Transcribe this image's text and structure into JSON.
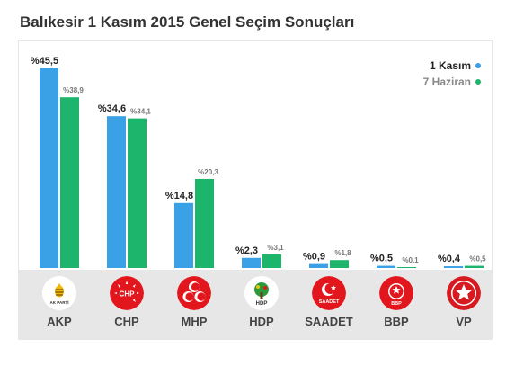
{
  "page": {
    "title": "Balıkesir 1 Kasım 2015 Genel Seçim Sonuçları"
  },
  "legend": {
    "current": "1 Kasım",
    "previous": "7 Haziran"
  },
  "colors": {
    "current": "#3aa1e6",
    "previous": "#1db56b"
  },
  "chart_data": {
    "type": "bar",
    "categories": [
      "AKP",
      "CHP",
      "MHP",
      "HDP",
      "SAADET",
      "BBP",
      "VP"
    ],
    "series": [
      {
        "name": "1 Kasım",
        "values": [
          45.5,
          34.6,
          14.8,
          2.3,
          0.9,
          0.5,
          0.4
        ],
        "labels": [
          "%45,5",
          "%34,6",
          "%14,8",
          "%2,3",
          "%0,9",
          "%0,5",
          "%0,4"
        ]
      },
      {
        "name": "7 Haziran",
        "values": [
          38.9,
          34.1,
          20.3,
          3.1,
          1.8,
          0.1,
          0.5
        ],
        "labels": [
          "%38,9",
          "%34,1",
          "%20,3",
          "%3,1",
          "%1,8",
          "%0,1",
          "%0,5"
        ]
      }
    ],
    "ylim": [
      0,
      50
    ],
    "grid": false,
    "legend_position": "top-right"
  },
  "parties": [
    {
      "name": "AKP",
      "logo_icon": "akp-logo-icon",
      "logo_text": "AK PARTİ"
    },
    {
      "name": "CHP",
      "logo_icon": "chp-logo-icon",
      "logo_text": "CHP"
    },
    {
      "name": "MHP",
      "logo_icon": "mhp-logo-icon",
      "logo_text": ""
    },
    {
      "name": "HDP",
      "logo_icon": "hdp-logo-icon",
      "logo_text": "HDP"
    },
    {
      "name": "SAADET",
      "logo_icon": "saadet-logo-icon",
      "logo_text": "SAADET"
    },
    {
      "name": "BBP",
      "logo_icon": "bbp-logo-icon",
      "logo_text": "BBP"
    },
    {
      "name": "VP",
      "logo_icon": "vp-logo-icon",
      "logo_text": ""
    }
  ]
}
